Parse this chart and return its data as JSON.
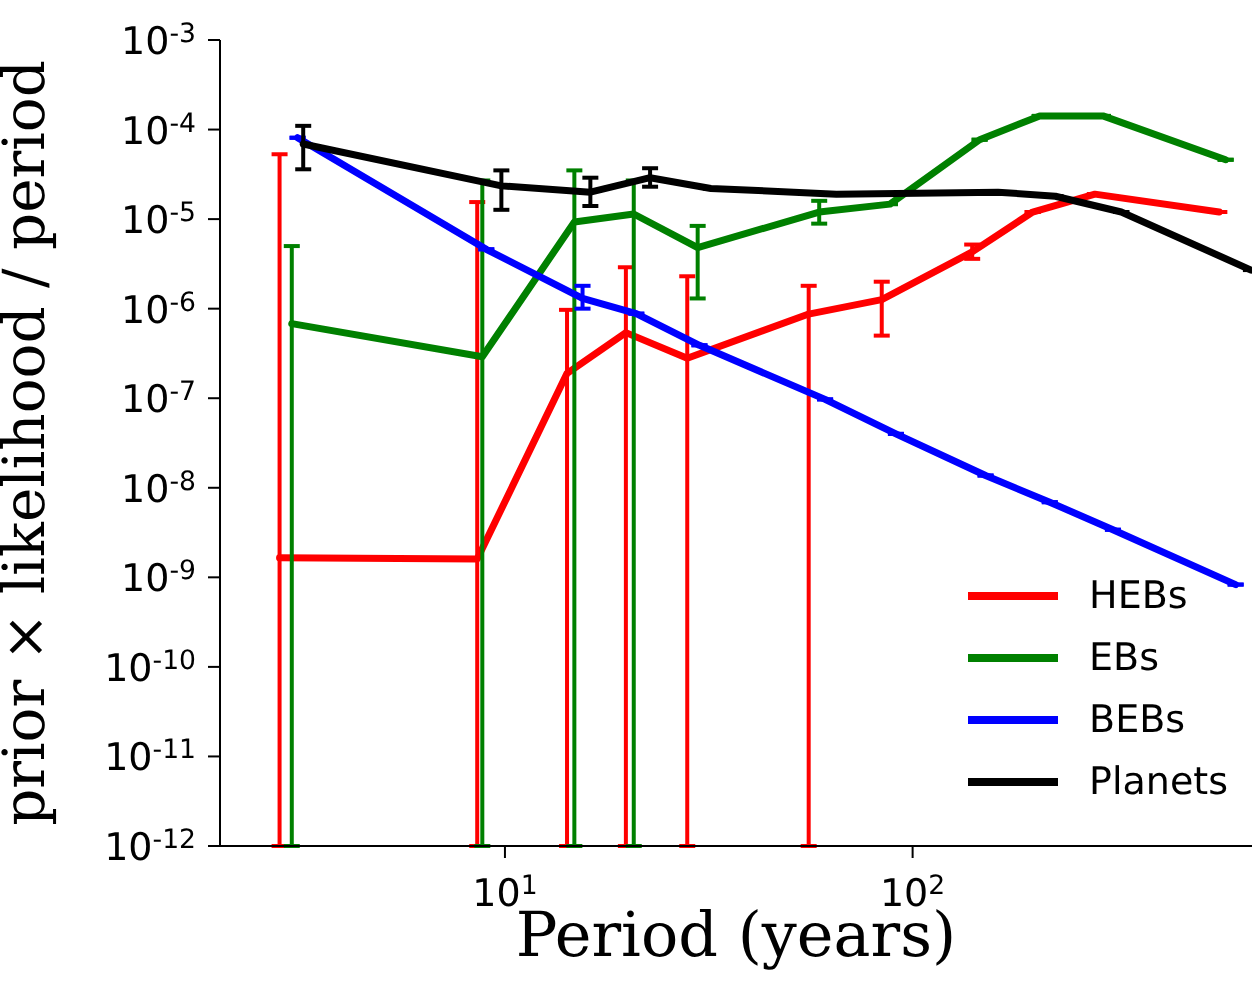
{
  "chart_data": {
    "type": "line",
    "xlabel": "Period (years)",
    "ylabel": "prior × likelihood / period",
    "log": "xy",
    "grid": false,
    "legend": "bottom right",
    "marker": "none",
    "line_style": "solid",
    "xlim": [
      2,
      680
    ],
    "xticks": [
      {
        "value": 10,
        "label": "10$^{1}$"
      },
      {
        "value": 100,
        "label": "10$^{2}$"
      }
    ],
    "ylim": [
      1e-12,
      0.001
    ],
    "yticks": [
      {
        "value": 1e-12,
        "label": "10$^{-12}$"
      },
      {
        "value": 1e-11,
        "label": "10$^{-11}$"
      },
      {
        "value": 1e-10,
        "label": "10$^{-10}$"
      },
      {
        "value": 1e-09,
        "label": "10$^{-9}$"
      },
      {
        "value": 1e-08,
        "label": "10$^{-8}$"
      },
      {
        "value": 1e-07,
        "label": "10$^{-7}$"
      },
      {
        "value": 1e-06,
        "label": "10$^{-6}$"
      },
      {
        "value": 1e-05,
        "label": "10$^{-5}$"
      },
      {
        "value": 0.0001,
        "label": "10$^{-4}$"
      },
      {
        "value": 0.001,
        "label": "10$^{-3}$"
      }
    ],
    "series": [
      {
        "name": "HEBs",
        "color": "#ff0000",
        "x": [
          2.8,
          8.55,
          14.2,
          19.8,
          28,
          55.6,
          84,
          140,
          197,
          280,
          565
        ],
        "values": [
          1.65e-09,
          1.6e-09,
          1.9e-07,
          5.4e-07,
          2.8e-07,
          8.7e-07,
          1.26e-06,
          4.3e-06,
          1.2e-05,
          1.9e-05,
          1.2e-05
        ],
        "errors": [
          [
            1e-12,
            5.3e-05
          ],
          [
            1e-12,
            1.55e-05
          ],
          [
            1e-12,
            9.7e-07
          ],
          [
            1e-12,
            2.9e-06
          ],
          [
            1e-12,
            2.3e-06
          ],
          [
            1e-12,
            1.8e-06
          ],
          [
            5e-07,
            2e-06
          ],
          [
            3.6e-06,
            5.2e-06
          ],
          null,
          null,
          null
        ]
      },
      {
        "name": "EBs",
        "color": "#008000",
        "x": [
          3.0,
          8.8,
          14.8,
          20.7,
          29.7,
          59,
          88,
          146,
          205,
          293,
          586
        ],
        "values": [
          6.8e-07,
          2.9e-07,
          9.3e-06,
          1.14e-05,
          4.8e-06,
          1.2e-05,
          1.47e-05,
          7.7e-05,
          0.000142,
          0.000142,
          4.6e-05
        ],
        "errors": [
          [
            1e-12,
            5e-06
          ],
          [
            1e-12,
            2.7e-05
          ],
          [
            1e-12,
            3.5e-05
          ],
          [
            1e-12,
            2.7e-05
          ],
          [
            1.3e-06,
            8.4e-06
          ],
          [
            8.9e-06,
            1.6e-05
          ],
          null,
          null,
          null,
          null,
          null
        ]
      },
      {
        "name": "BEBs",
        "color": "#0000ff",
        "x": [
          3.1,
          9.0,
          15.5,
          21,
          30,
          61,
          91,
          151,
          217,
          310,
          620
        ],
        "values": [
          8.1e-05,
          4.6e-06,
          1.3e-06,
          8.8e-07,
          3.9e-07,
          9.7e-08,
          4e-08,
          1.37e-08,
          6.9e-09,
          3.4e-09,
          8.3e-10
        ],
        "errors": [
          null,
          null,
          [
            1e-06,
            1.8e-06
          ],
          null,
          null,
          null,
          null,
          null,
          null,
          null,
          null
        ]
      },
      {
        "name": "Planets",
        "color": "#000000",
        "x": [
          3.2,
          9.8,
          16.2,
          22.7,
          32,
          65,
          162,
          224,
          325,
          676
        ],
        "values": [
          6.9e-05,
          2.35e-05,
          2e-05,
          2.9e-05,
          2.2e-05,
          1.9e-05,
          2e-05,
          1.8e-05,
          1.2e-05,
          2.7e-06
        ],
        "errors": [
          [
            3.6e-05,
            0.00011
          ],
          [
            1.27e-05,
            3.5e-05
          ],
          [
            1.4e-05,
            2.9e-05
          ],
          [
            2.3e-05,
            3.7e-05
          ],
          null,
          null,
          null,
          null,
          null,
          null
        ]
      }
    ]
  }
}
